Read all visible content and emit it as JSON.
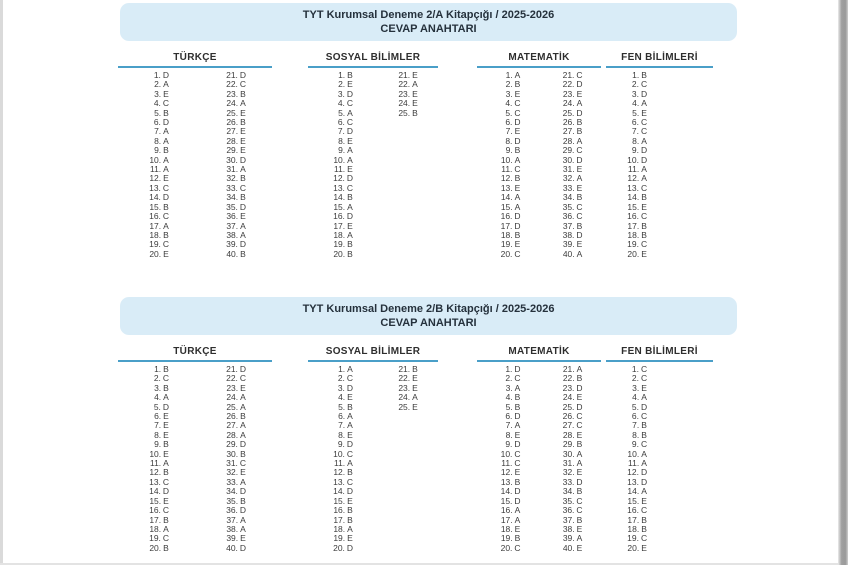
{
  "colors": {
    "section_header_bg": "#d9ecf7",
    "subject_underline": "#4a9fc8",
    "page_edge_gray": "#9a9a9a",
    "text_dark": "#25313c",
    "answer_text": "#3c3c3c"
  },
  "document": {
    "sections": [
      {
        "title": "TYT Kurumsal Deneme 2/A Kitapçığı / 2025-2026",
        "subtitle": "CEVAP ANAHTARI",
        "subjects": [
          {
            "name": "TÜRKÇE",
            "columns": [
              {
                "start": 1,
                "letters": [
                  "D",
                  "A",
                  "E",
                  "C",
                  "B",
                  "D",
                  "A",
                  "A",
                  "B",
                  "A",
                  "A",
                  "E",
                  "C",
                  "D",
                  "B",
                  "C",
                  "A",
                  "B",
                  "C",
                  "E"
                ]
              },
              {
                "start": 21,
                "letters": [
                  "D",
                  "C",
                  "B",
                  "A",
                  "E",
                  "B",
                  "E",
                  "E",
                  "E",
                  "D",
                  "A",
                  "B",
                  "C",
                  "B",
                  "D",
                  "E",
                  "A",
                  "A",
                  "D",
                  "B"
                ]
              }
            ]
          },
          {
            "name": "SOSYAL BİLİMLER",
            "columns": [
              {
                "start": 1,
                "letters": [
                  "B",
                  "E",
                  "D",
                  "C",
                  "A",
                  "C",
                  "D",
                  "E",
                  "A",
                  "A",
                  "E",
                  "D",
                  "C",
                  "B",
                  "A",
                  "D",
                  "E",
                  "A",
                  "B",
                  "B"
                ]
              },
              {
                "start": 21,
                "letters": [
                  "E",
                  "A",
                  "E",
                  "E",
                  "B"
                ]
              }
            ]
          },
          {
            "name": "MATEMATİK",
            "columns": [
              {
                "start": 1,
                "letters": [
                  "A",
                  "B",
                  "E",
                  "C",
                  "C",
                  "D",
                  "E",
                  "D",
                  "B",
                  "A",
                  "C",
                  "B",
                  "E",
                  "A",
                  "A",
                  "D",
                  "D",
                  "B",
                  "E",
                  "C"
                ]
              },
              {
                "start": 21,
                "letters": [
                  "C",
                  "D",
                  "E",
                  "A",
                  "D",
                  "B",
                  "B",
                  "A",
                  "C",
                  "D",
                  "E",
                  "A",
                  "E",
                  "B",
                  "C",
                  "C",
                  "B",
                  "D",
                  "E",
                  "A"
                ]
              }
            ]
          },
          {
            "name": "FEN BİLİMLERİ",
            "columns": [
              {
                "start": 1,
                "letters": [
                  "B",
                  "C",
                  "D",
                  "A",
                  "E",
                  "C",
                  "C",
                  "A",
                  "D",
                  "D",
                  "A",
                  "A",
                  "C",
                  "B",
                  "E",
                  "C",
                  "B",
                  "B",
                  "C",
                  "E"
                ]
              }
            ]
          }
        ]
      },
      {
        "title": "TYT Kurumsal Deneme 2/B Kitapçığı / 2025-2026",
        "subtitle": "CEVAP ANAHTARI",
        "subjects": [
          {
            "name": "TÜRKÇE",
            "columns": [
              {
                "start": 1,
                "letters": [
                  "B",
                  "C",
                  "B",
                  "A",
                  "D",
                  "E",
                  "E",
                  "E",
                  "B",
                  "E",
                  "A",
                  "B",
                  "C",
                  "D",
                  "E",
                  "C",
                  "B",
                  "A",
                  "C",
                  "B"
                ]
              },
              {
                "start": 21,
                "letters": [
                  "D",
                  "C",
                  "E",
                  "A",
                  "A",
                  "B",
                  "A",
                  "A",
                  "D",
                  "B",
                  "C",
                  "E",
                  "A",
                  "D",
                  "B",
                  "D",
                  "A",
                  "A",
                  "E",
                  "D"
                ]
              }
            ]
          },
          {
            "name": "SOSYAL BİLİMLER",
            "columns": [
              {
                "start": 1,
                "letters": [
                  "A",
                  "C",
                  "D",
                  "E",
                  "B",
                  "A",
                  "A",
                  "E",
                  "D",
                  "C",
                  "A",
                  "B",
                  "C",
                  "D",
                  "E",
                  "B",
                  "B",
                  "A",
                  "E",
                  "D"
                ]
              },
              {
                "start": 21,
                "letters": [
                  "B",
                  "E",
                  "E",
                  "A",
                  "E"
                ]
              }
            ]
          },
          {
            "name": "MATEMATİK",
            "columns": [
              {
                "start": 1,
                "letters": [
                  "D",
                  "C",
                  "A",
                  "B",
                  "B",
                  "D",
                  "A",
                  "E",
                  "D",
                  "C",
                  "C",
                  "E",
                  "B",
                  "D",
                  "D",
                  "A",
                  "A",
                  "E",
                  "B",
                  "C"
                ]
              },
              {
                "start": 21,
                "letters": [
                  "A",
                  "B",
                  "D",
                  "E",
                  "D",
                  "C",
                  "C",
                  "E",
                  "B",
                  "A",
                  "A",
                  "E",
                  "D",
                  "B",
                  "C",
                  "C",
                  "B",
                  "E",
                  "A",
                  "E"
                ]
              }
            ]
          },
          {
            "name": "FEN BİLİMLERİ",
            "columns": [
              {
                "start": 1,
                "letters": [
                  "C",
                  "C",
                  "E",
                  "A",
                  "D",
                  "C",
                  "B",
                  "B",
                  "C",
                  "A",
                  "A",
                  "D",
                  "D",
                  "A",
                  "E",
                  "C",
                  "B",
                  "B",
                  "C",
                  "E"
                ]
              }
            ]
          }
        ]
      }
    ]
  }
}
